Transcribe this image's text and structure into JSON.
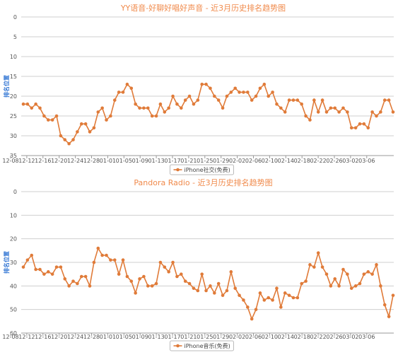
{
  "colors": {
    "series": "#e07b39",
    "title": "#f08a4b",
    "grid": "#cfcfcf",
    "axis": "#9a9a9a",
    "ylabel": "#3a7bd5"
  },
  "chart_data": [
    {
      "type": "line",
      "title": "YY语音-好聊好唱好声音 - 近3月历史排名趋势图",
      "ylabel": "排名位置",
      "xlabel": "",
      "ylim": [
        0,
        35
      ],
      "y_reversed": true,
      "yticks": [
        "0",
        "5",
        "10",
        "15",
        "20",
        "25",
        "30",
        "35"
      ],
      "xticks": [
        "12-08",
        "12-12",
        "12-16",
        "12-20",
        "12-24",
        "12-28",
        "01-01",
        "01-05",
        "01-09",
        "01-13",
        "01-17",
        "01-21",
        "01-25",
        "01-29",
        "02-02",
        "02-06",
        "02-10",
        "02-14",
        "02-18",
        "02-22",
        "02-26",
        "03-02",
        "03-06"
      ],
      "grid": true,
      "legend": "bottom",
      "series": [
        {
          "name": "iPhone社交(免费)",
          "values": [
            22,
            22,
            23,
            22,
            23,
            25,
            26,
            26,
            25,
            30,
            31,
            32,
            31,
            29,
            27,
            27,
            29,
            28,
            24,
            23,
            26,
            25,
            21,
            19,
            19,
            17,
            18,
            22,
            23,
            23,
            23,
            25,
            25,
            22,
            24,
            23,
            20,
            22,
            23,
            21,
            20,
            22,
            21,
            17,
            17,
            18,
            20,
            21,
            23,
            20,
            19,
            18,
            19,
            19,
            19,
            21,
            20,
            18,
            17,
            20,
            19,
            22,
            23,
            24,
            21,
            21,
            21,
            22,
            25,
            26,
            21,
            24,
            21,
            24,
            23,
            23,
            24,
            23,
            24,
            28,
            28,
            27,
            27,
            28,
            24,
            25,
            24,
            21,
            21,
            24
          ]
        }
      ]
    },
    {
      "type": "line",
      "title": "Pandora Radio - 近3月历史排名趋势图",
      "ylabel": "排名位置",
      "xlabel": "",
      "ylim": [
        0,
        60
      ],
      "y_reversed": true,
      "yticks": [
        "0",
        "10",
        "20",
        "30",
        "40",
        "50",
        "60"
      ],
      "xticks": [
        "12-08",
        "12-12",
        "12-16",
        "12-20",
        "12-24",
        "12-28",
        "01-01",
        "01-05",
        "01-09",
        "01-13",
        "01-17",
        "01-21",
        "01-25",
        "01-29",
        "02-02",
        "02-06",
        "02-10",
        "02-14",
        "02-18",
        "02-22",
        "02-26",
        "03-02",
        "03-06"
      ],
      "grid": true,
      "legend": "bottom",
      "series": [
        {
          "name": "iPhone音乐(免费)",
          "values": [
            32,
            29,
            27,
            33,
            33,
            35,
            34,
            35,
            32,
            32,
            37,
            40,
            38,
            39,
            36,
            36,
            40,
            30,
            24,
            27,
            27,
            29,
            29,
            35,
            29,
            36,
            38,
            43,
            37,
            36,
            40,
            40,
            39,
            30,
            32,
            34,
            30,
            36,
            35,
            38,
            39,
            41,
            42,
            35,
            42,
            40,
            43,
            39,
            44,
            42,
            34,
            41,
            44,
            46,
            49,
            54,
            50,
            43,
            46,
            45,
            46,
            41,
            49,
            43,
            44,
            45,
            45,
            39,
            38,
            31,
            32,
            26,
            32,
            35,
            40,
            37,
            40,
            33,
            35,
            41,
            40,
            39,
            35,
            34,
            35,
            31,
            40,
            48,
            53,
            44
          ]
        }
      ]
    }
  ]
}
